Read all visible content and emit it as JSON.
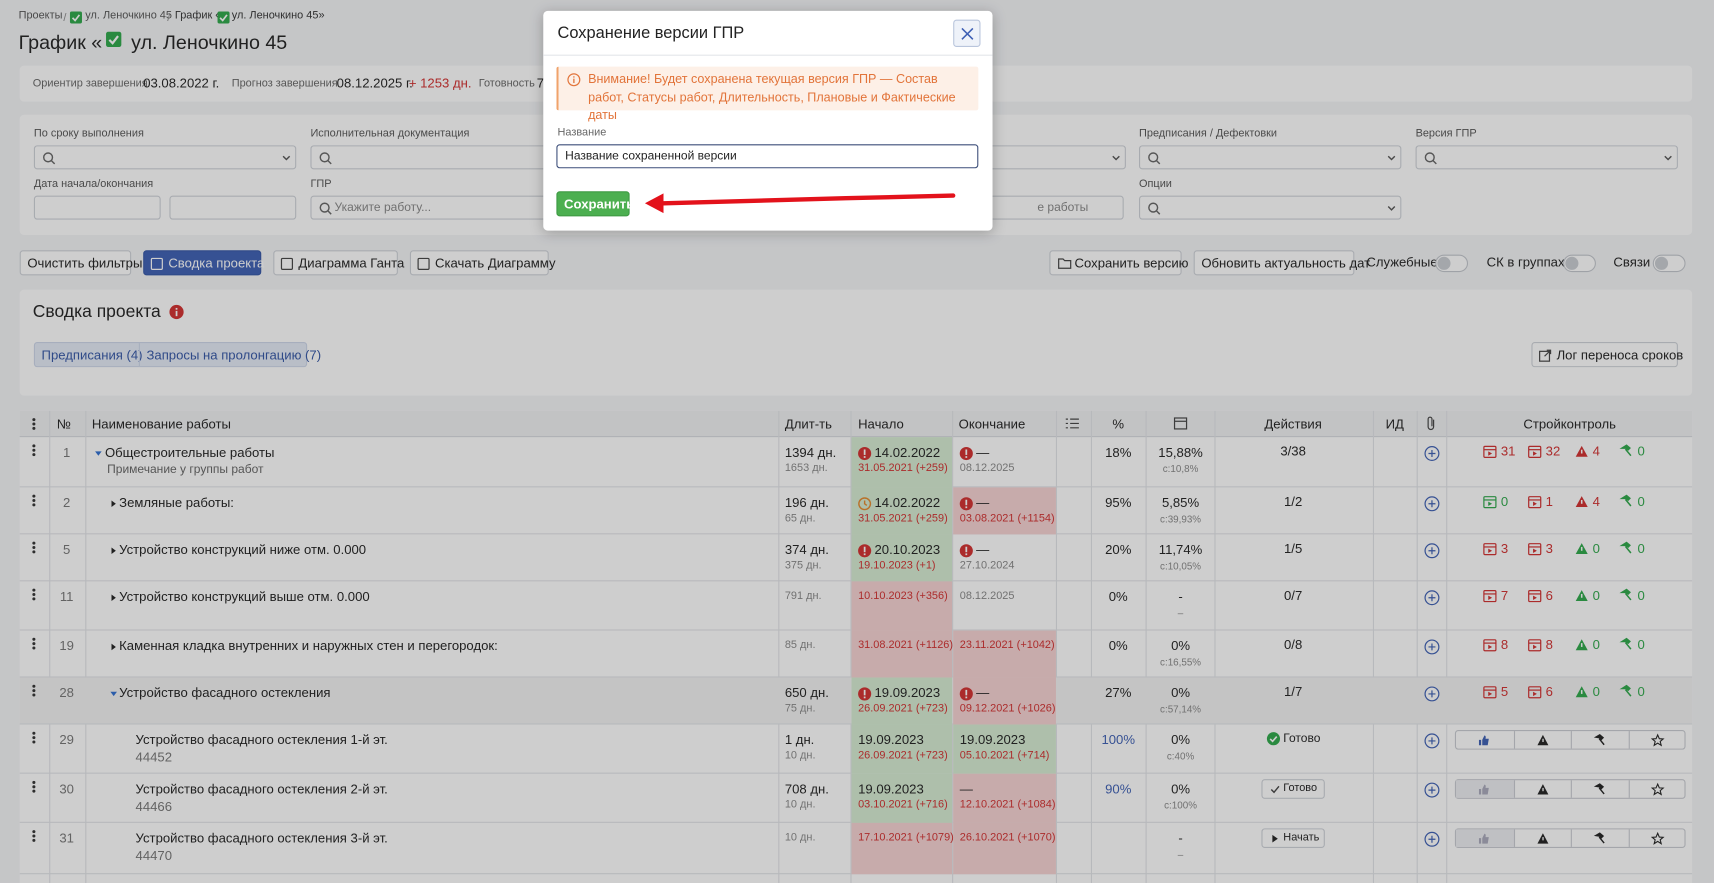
{
  "breadcrumbs": [
    "Проекты",
    "ул. Леночкино 45",
    "График «",
    "ул. Леночкино 45»"
  ],
  "title": {
    "prefix": "График «",
    "name": "ул. Леночкино 45"
  },
  "info": [
    {
      "label": "Ориентир завершения",
      "value": "03.08.2022 г."
    },
    {
      "label": "Прогноз завершения",
      "value": "08.12.2025 г.",
      "extra": "+ 1253 дн."
    },
    {
      "label": "Готовность",
      "value": "7"
    }
  ],
  "filters": {
    "row1": [
      "По сроку выполнения",
      "Исполнительная документация",
      "Предписания / Дефектовки",
      "Версия ГПР"
    ],
    "row2": [
      "Дата начала/окончания",
      "ГПР",
      "Опции"
    ],
    "gpr_placeholder": "Укажите работу...",
    "hidden_placeholder": "е работы"
  },
  "toolbar": {
    "left": [
      "Очистить фильтры",
      "Сводка проекта",
      "Диаграмма Ганта",
      "Скачать Диаграмму"
    ],
    "right": [
      "Сохранить версию",
      "Обновить актуальность дат"
    ],
    "toggles": [
      "Служебные",
      "СК в группах",
      "Связи"
    ]
  },
  "summary": {
    "title": "Сводка проекта",
    "tabs": [
      "Предписания (4)",
      "Запросы на пролонгацию (7)"
    ],
    "log_button": "Лог переноса сроков"
  },
  "table": {
    "headers": {
      "num": "№",
      "name": "Наименование работы",
      "dur": "Длит-ть",
      "start": "Начало",
      "end": "Окончание",
      "pct": "%",
      "actions": "Действия",
      "id": "ИД",
      "sk": "Стройконтроль"
    },
    "rows": [
      {
        "num": 1,
        "name": "Общестроительные работы",
        "note": "Примечание у группы работ",
        "expanded": true,
        "dur": "1394 дн.",
        "dur_plan": "1653 дн.",
        "start_icon": "alert",
        "start": "14.02.2022",
        "start_plan": "31.05.2021 (+259)",
        "start_color": "#d6ecd3",
        "end_icon": "alert",
        "end": "—",
        "end_plan": "08.12.2025",
        "end_color": null,
        "pct": "18%",
        "money": "15,88%",
        "money_sub": "с:10,8%",
        "actions": "3/38",
        "sk": [
          31,
          32,
          4,
          0
        ]
      },
      {
        "num": 2,
        "name": "Земляные работы:",
        "expanded": false,
        "dur": "196 дн.",
        "dur_plan": "65 дн.",
        "start_icon": "clock",
        "start": "14.02.2022",
        "start_plan": "31.05.2021 (+259)",
        "start_color": "#d6ecd3",
        "end_icon": "alert",
        "end": "—",
        "end_plan": "03.08.2021 (+1154)",
        "end_color": "#f6d3d3",
        "pct": "95%",
        "money": "5,85%",
        "money_sub": "с:39,93%",
        "actions": "1/2",
        "sk": [
          0,
          1,
          4,
          0
        ]
      },
      {
        "num": 5,
        "name": "Устройство конструкций ниже отм. 0.000",
        "expanded": false,
        "dur": "374 дн.",
        "dur_plan": "375 дн.",
        "start_icon": "alert",
        "start": "20.10.2023",
        "start_plan": "19.10.2023 (+1)",
        "start_color": "#d6ecd3",
        "end_icon": "alert",
        "end": "—",
        "end_plan": "27.10.2024",
        "end_color": null,
        "pct": "20%",
        "money": "11,74%",
        "money_sub": "с:10,05%",
        "actions": "1/5",
        "sk": [
          3,
          3,
          0,
          0
        ]
      },
      {
        "num": 11,
        "name": "Устройство конструкций выше отм. 0.000",
        "expanded": false,
        "dur": null,
        "dur_plan": "791 дн.",
        "start_icon": null,
        "start": null,
        "start_plan": "10.10.2023 (+356)",
        "start_color": "#f6d3d3",
        "end_icon": null,
        "end": null,
        "end_plan": "08.12.2025",
        "end_color": null,
        "pct": "0%",
        "money": "-",
        "money_sub": "–",
        "actions": "0/7",
        "sk": [
          7,
          6,
          0,
          0
        ]
      },
      {
        "num": 19,
        "name": "Каменная кладка внутренних и наружных стен и перегородок:",
        "expanded": false,
        "dur": null,
        "dur_plan": "85 дн.",
        "start_icon": null,
        "start": null,
        "start_plan": "31.08.2021 (+1126)",
        "start_color": "#f6d3d3",
        "end_icon": null,
        "end": null,
        "end_plan": "23.11.2021 (+1042)",
        "end_color": "#f6d3d3",
        "pct": "0%",
        "money": "0%",
        "money_sub": "с:16,55%",
        "actions": "0/8",
        "sk": [
          8,
          8,
          0,
          0
        ]
      },
      {
        "num": 28,
        "name": "Устройство фасадного остекления",
        "expanded": true,
        "dur": "650 дн.",
        "dur_plan": "75 дн.",
        "start_icon": "alert",
        "start": "19.09.2023",
        "start_plan": "26.09.2021 (+723)",
        "start_color": "#d6ecd3",
        "end_icon": "alert",
        "end": "—",
        "end_plan": "09.12.2021 (+1026)",
        "end_color": "#f6d3d3",
        "pct": "27%",
        "money": "0%",
        "money_sub": "с:57,14%",
        "actions": "1/7",
        "sk": [
          5,
          6,
          0,
          0
        ]
      },
      {
        "num": 29,
        "name": "Устройство фасадного остекления 1-й эт.",
        "code": "44452",
        "dur": "1 дн.",
        "dur_plan": "10 дн.",
        "start_icon": null,
        "start": "19.09.2023",
        "start_plan": "26.09.2021 (+723)",
        "start_color": "#d6ecd3",
        "end_icon": null,
        "end": "19.09.2023",
        "end_plan": "05.10.2021 (+714)",
        "end_color": "#d6ecd3",
        "pct": "100%",
        "money": "0%",
        "money_sub": "с:40%",
        "status": "Готово",
        "status_kind": "done"
      },
      {
        "num": 30,
        "name": "Устройство фасадного остекления 2-й эт.",
        "code": "44466",
        "dur": "708 дн.",
        "dur_plan": "10 дн.",
        "start_icon": null,
        "start": "19.09.2023",
        "start_plan": "03.10.2021 (+716)",
        "start_color": "#d6ecd3",
        "end_icon": null,
        "end": "—",
        "end_plan": "12.10.2021 (+1084)",
        "end_color": "#f6d3d3",
        "pct": "90%",
        "money": "0%",
        "money_sub": "с:100%",
        "status": "Готово",
        "status_kind": "button-done"
      },
      {
        "num": 31,
        "name": "Устройство фасадного остекления 3-й эт.",
        "code": "44470",
        "dur": null,
        "dur_plan": "10 дн.",
        "start_icon": null,
        "start": null,
        "start_plan": "17.10.2021 (+1079)",
        "start_color": "#f6d3d3",
        "end_icon": null,
        "end": null,
        "end_plan": "26.10.2021 (+1070)",
        "end_color": "#f6d3d3",
        "pct": null,
        "money": "-",
        "money_sub": "–",
        "status": "Начать",
        "status_kind": "button-start"
      }
    ]
  },
  "modal": {
    "title": "Сохранение версии ГПР",
    "warning": "Внимание! Будет сохранена текущая версия ГПР — Состав работ, Статусы работ, Длительность, Плановые и Фактические даты",
    "field_label": "Название",
    "field_value": "Название сохраненной версии",
    "submit": "Сохранить"
  }
}
